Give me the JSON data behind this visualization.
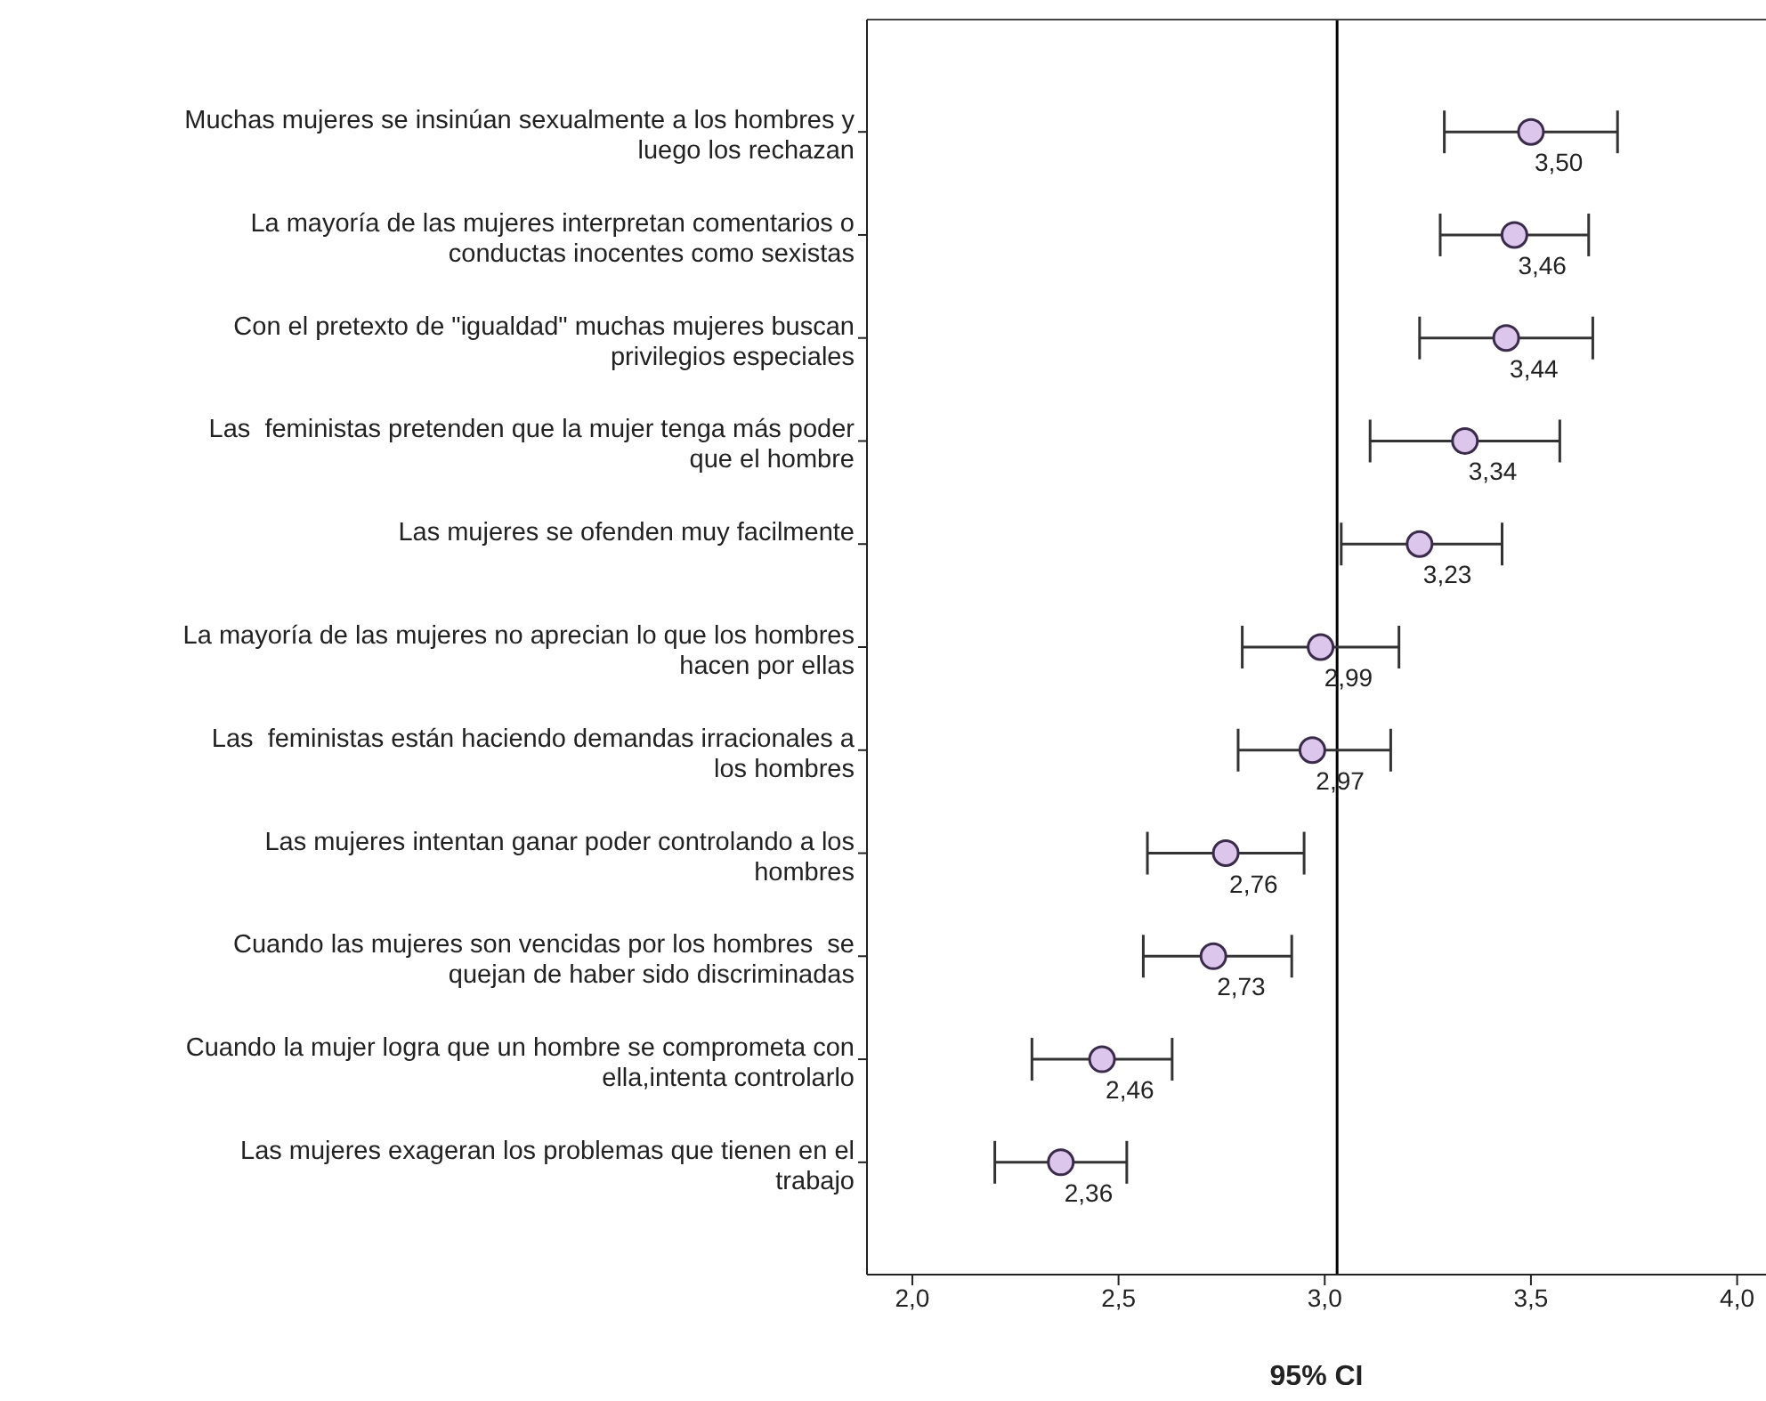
{
  "chart_data": {
    "type": "scatter",
    "orientation": "horizontal",
    "xlabel": "95% CI",
    "categories": [
      "Muchas mujeres se insinúan sexualmente a los hombres y luego los rechazan",
      "La mayoría de las mujeres interpretan comentarios o conductas inocentes como sexistas",
      "Con el pretexto de \"igualdad\" muchas mujeres buscan privilegios especiales",
      "Las  feministas pretenden que la mujer tenga más poder que el hombre",
      "Las mujeres se ofenden muy facilmente",
      "La mayoría de las mujeres no aprecian lo que los hombres hacen por ellas",
      "Las  feministas están haciendo demandas irracionales a los hombres",
      "Las mujeres intentan ganar poder controlando a los hombres",
      "Cuando las mujeres son vencidas por los hombres  se quejan de haber sido discriminadas",
      "Cuando la mujer logra que un hombre se comprometa con ella,intenta controlarlo",
      "Las mujeres exageran los problemas que tienen en el trabajo"
    ],
    "values": [
      3.5,
      3.46,
      3.44,
      3.34,
      3.23,
      2.99,
      2.97,
      2.76,
      2.73,
      2.46,
      2.36
    ],
    "errors": [
      [
        3.29,
        3.71
      ],
      [
        3.28,
        3.64
      ],
      [
        3.23,
        3.65
      ],
      [
        3.11,
        3.57
      ],
      [
        3.04,
        3.43
      ],
      [
        2.8,
        3.18
      ],
      [
        2.79,
        3.16
      ],
      [
        2.57,
        2.95
      ],
      [
        2.56,
        2.92
      ],
      [
        2.29,
        2.63
      ],
      [
        2.2,
        2.52
      ]
    ],
    "value_labels": [
      "3,50",
      "3,46",
      "3,44",
      "3,34",
      "3,23",
      "2,99",
      "2,97",
      "2,76",
      "2,73",
      "2,46",
      "2,36"
    ],
    "color": "#dcc6ec",
    "marker": "circle",
    "grid": false,
    "legend": false,
    "xlim": [
      1.89,
      4.07
    ],
    "xticks": [
      {
        "value": 2.0,
        "label": "2,0"
      },
      {
        "value": 2.5,
        "label": "2,5"
      },
      {
        "value": 3.0,
        "label": "3,0"
      },
      {
        "value": 3.5,
        "label": "3,5"
      },
      {
        "value": 4.0,
        "label": "4,0"
      }
    ],
    "ref_lines": [
      {
        "axis": "x",
        "value": 3.03,
        "color": "#000000"
      }
    ]
  }
}
